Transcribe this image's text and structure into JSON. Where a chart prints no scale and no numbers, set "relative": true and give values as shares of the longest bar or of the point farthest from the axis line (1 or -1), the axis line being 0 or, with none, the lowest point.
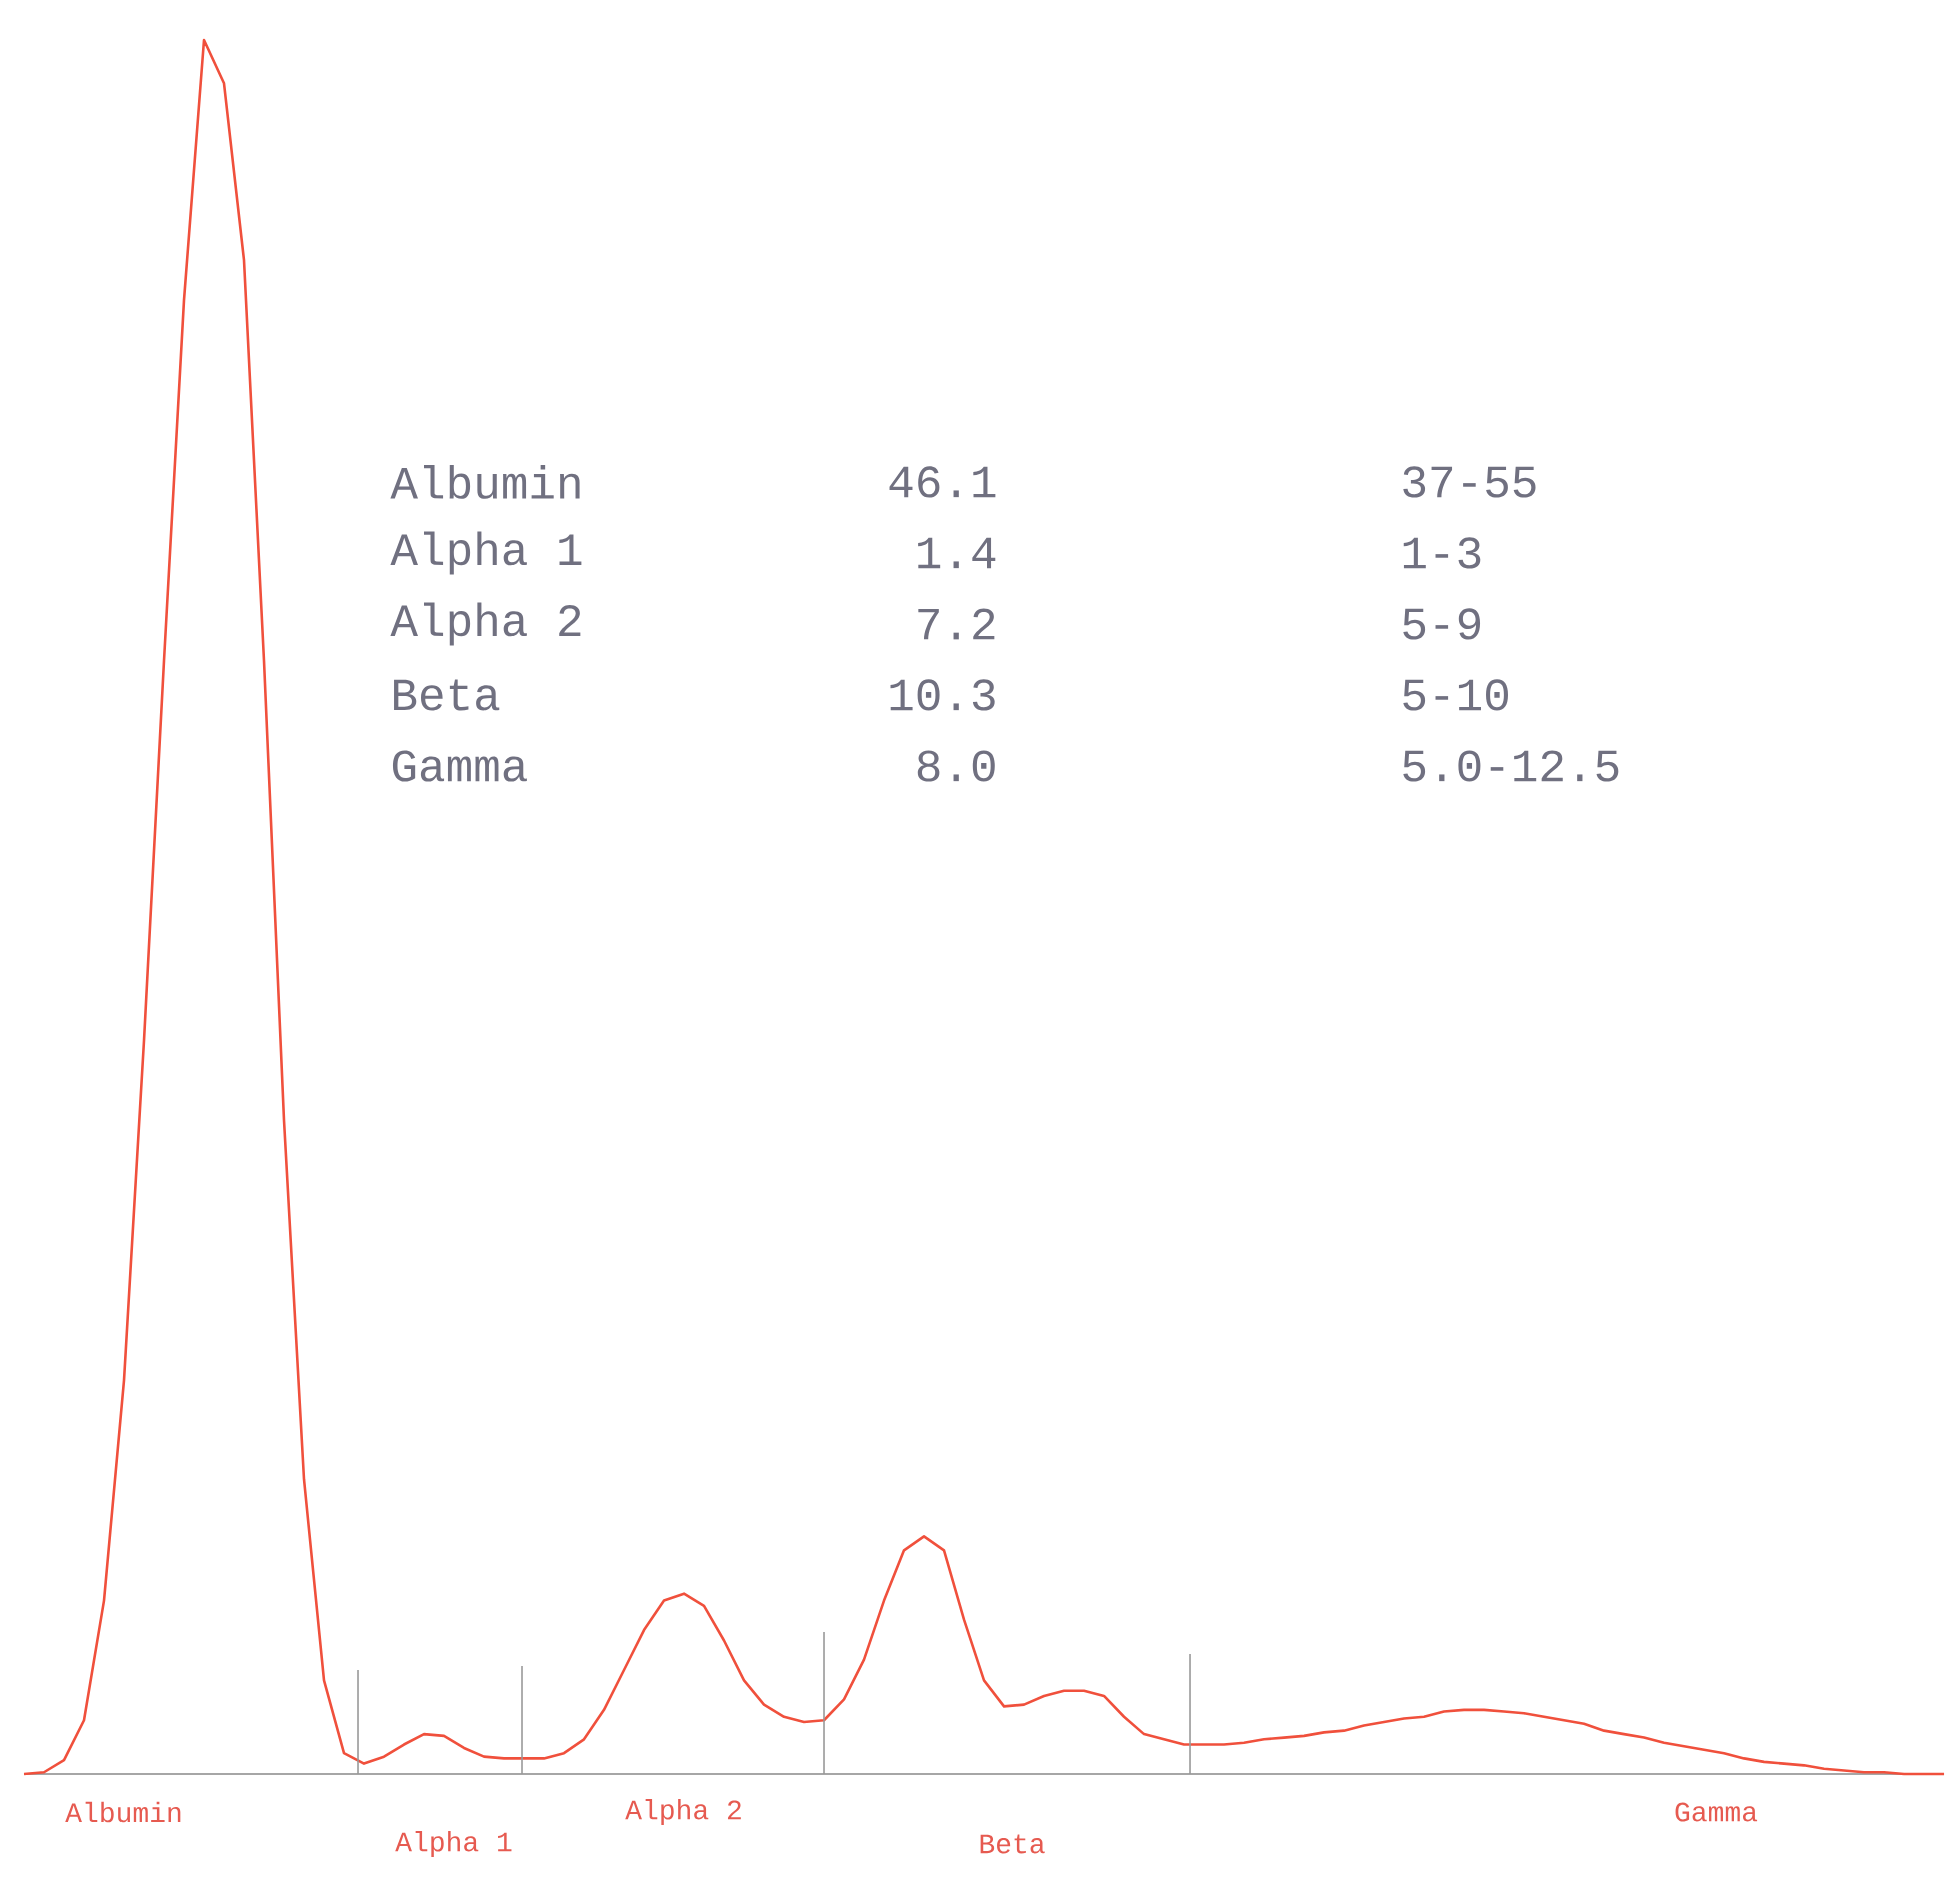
{
  "chart_data": {
    "type": "line",
    "relative": true,
    "color": "#f0503c",
    "line_style": "solid",
    "marker": "none",
    "categories": [
      null,
      null,
      null,
      null,
      null,
      null,
      null,
      null,
      null,
      null,
      null,
      null,
      null,
      null,
      null,
      null,
      null,
      null,
      null,
      null,
      null,
      null,
      null,
      null,
      null,
      null,
      null,
      null,
      null,
      null,
      null,
      null,
      null,
      null,
      null,
      null,
      null,
      null,
      null,
      null,
      null,
      null,
      null,
      null,
      null,
      null,
      null,
      null,
      null,
      null,
      null,
      null,
      null,
      null,
      null,
      null,
      null,
      null,
      null,
      null,
      null,
      null,
      null,
      null,
      null,
      null,
      null,
      null,
      null,
      null,
      null,
      null,
      null,
      null,
      null,
      null,
      null,
      null,
      null,
      null,
      null,
      null,
      null,
      null,
      null,
      null,
      null,
      null,
      null,
      null,
      null,
      null,
      null,
      null,
      null,
      null,
      null
    ],
    "values": [
      0,
      0.001,
      0.008,
      0.031,
      0.1,
      0.227,
      0.423,
      0.642,
      0.85,
      1,
      0.975,
      0.873,
      0.642,
      0.377,
      0.17,
      0.054,
      0.012,
      0.006,
      0.01,
      0.017,
      0.023,
      0.022,
      0.015,
      0.01,
      0.009,
      0.009,
      0.009,
      0.012,
      0.02,
      0.037,
      0.06,
      0.083,
      0.1,
      0.104,
      0.097,
      0.077,
      0.054,
      0.04,
      0.033,
      0.03,
      0.031,
      0.043,
      0.066,
      0.1,
      0.129,
      0.137,
      0.129,
      0.089,
      0.054,
      0.039,
      0.04,
      0.045,
      0.048,
      0.048,
      0.045,
      0.033,
      0.023,
      0.02,
      0.017,
      0.017,
      0.017,
      0.018,
      0.02,
      0.021,
      0.022,
      0.024,
      0.025,
      0.028,
      0.03,
      0.032,
      0.033,
      0.036,
      0.037,
      0.037,
      0.036,
      0.035,
      0.033,
      0.031,
      0.029,
      0.025,
      0.023,
      0.021,
      0.018,
      0.016,
      0.014,
      0.012,
      0.009,
      0.007,
      0.006,
      0.005,
      0.003,
      0.002,
      0.001,
      0.001,
      0,
      0,
      0
    ],
    "annotations": [
      "Albumin",
      "Alpha 1",
      "Alpha 2",
      "Beta",
      "Gamma",
      "Albumin",
      "46.1",
      "37-55",
      "Alpha 1",
      "1.4",
      "1-3",
      "Alpha 2",
      "7.2",
      "5-9",
      "Beta",
      "10.3",
      "5-10",
      "Gamma",
      "8.0",
      "5.0-12.5"
    ]
  }
}
